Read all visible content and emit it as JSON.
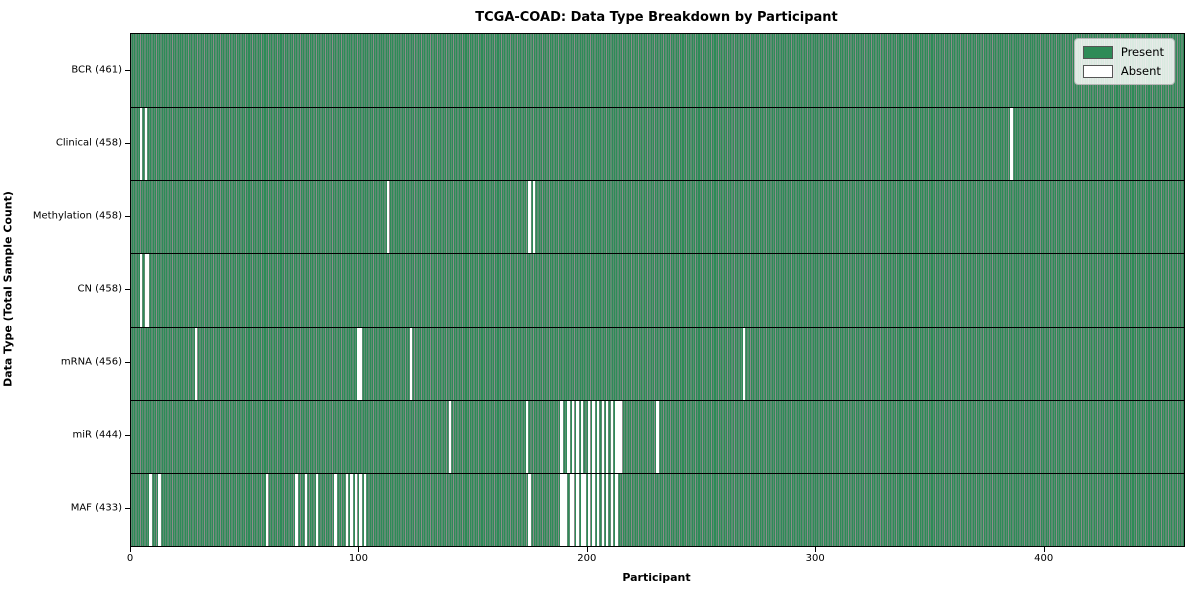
{
  "title": "TCGA-COAD: Data Type Breakdown by Participant",
  "chart_data": {
    "type": "heatmap",
    "title": "TCGA-COAD: Data Type Breakdown by Participant",
    "xlabel": "Participant",
    "ylabel": "Data Type (Total Sample Count)",
    "x_ticks": [
      0,
      100,
      200,
      300,
      400
    ],
    "xlim": [
      0,
      461
    ],
    "n_participants": 461,
    "grid": false,
    "legend_position": "upper right",
    "legend": [
      {
        "label": "Present",
        "color": "#2e8b57"
      },
      {
        "label": "Absent",
        "color": "#ffffff"
      }
    ],
    "colors": {
      "present": "#2e8b57",
      "absent": "#ffffff",
      "bar_edge": "rgba(0,0,0,0.45)"
    },
    "rows": [
      {
        "label": "BCR (461)",
        "data_type": "BCR",
        "present_count": 461,
        "absent_participants": []
      },
      {
        "label": "Clinical (458)",
        "data_type": "Clinical",
        "present_count": 458,
        "absent_participants": [
          4,
          6,
          385
        ]
      },
      {
        "label": "Methylation (458)",
        "data_type": "Methylation",
        "present_count": 458,
        "absent_participants": [
          112,
          174,
          176
        ]
      },
      {
        "label": "CN (458)",
        "data_type": "CN",
        "present_count": 458,
        "absent_participants": [
          4,
          6,
          7
        ]
      },
      {
        "label": "mRNA (456)",
        "data_type": "mRNA",
        "present_count": 456,
        "absent_participants": [
          28,
          99,
          100,
          122,
          268
        ]
      },
      {
        "label": "miR (444)",
        "data_type": "miR",
        "present_count": 444,
        "absent_participants": [
          139,
          173,
          188,
          191,
          193,
          195,
          197,
          200,
          202,
          204,
          206,
          208,
          210,
          212,
          213,
          214,
          230
        ]
      },
      {
        "label": "MAF (433)",
        "data_type": "MAF",
        "present_count": 433,
        "absent_participants": [
          8,
          12,
          59,
          72,
          76,
          81,
          89,
          94,
          96,
          98,
          100,
          102,
          174,
          188,
          189,
          190,
          192,
          193,
          195,
          197,
          198,
          200,
          202,
          204,
          206,
          208,
          210,
          212
        ]
      }
    ]
  }
}
